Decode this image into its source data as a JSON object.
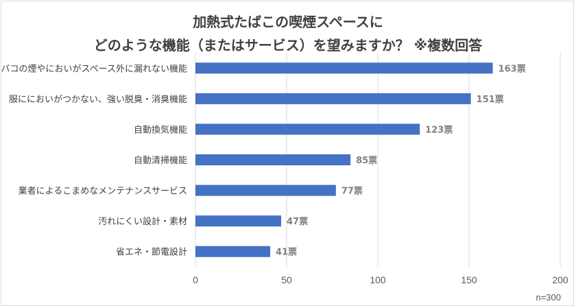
{
  "chart_data": {
    "type": "bar",
    "orientation": "horizontal",
    "title_line1": "加熱式たばこの喫煙スペースに",
    "title_line2": "どのような機能（またはサービス）を望みますか？ ※複数回答",
    "categories": [
      "タバコの煙やにおいがスペース外に漏れない機能",
      "服ににおいがつかない、強い脱臭・消臭機能",
      "自動換気機能",
      "自動清掃機能",
      "業者によるこまめなメンテナンスサービス",
      "汚れにくい設計・素材",
      "省エネ・節電設計"
    ],
    "values": [
      163,
      151,
      123,
      85,
      77,
      47,
      41
    ],
    "value_suffix": "票",
    "xlim": [
      0,
      200
    ],
    "xticks": [
      "0",
      "50",
      "100",
      "150",
      "200"
    ],
    "grid": "vertical",
    "bar_color": "#4472c4",
    "note": "n=300"
  }
}
